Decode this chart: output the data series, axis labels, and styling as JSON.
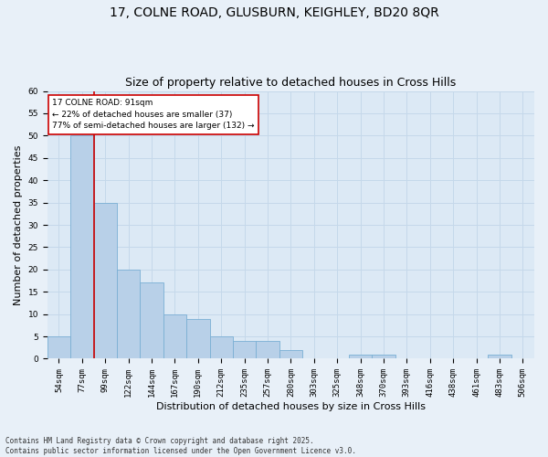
{
  "title_line1": "17, COLNE ROAD, GLUSBURN, KEIGHLEY, BD20 8QR",
  "title_line2": "Size of property relative to detached houses in Cross Hills",
  "xlabel": "Distribution of detached houses by size in Cross Hills",
  "ylabel": "Number of detached properties",
  "footnote": "Contains HM Land Registry data © Crown copyright and database right 2025.\nContains public sector information licensed under the Open Government Licence v3.0.",
  "categories": [
    "54sqm",
    "77sqm",
    "99sqm",
    "122sqm",
    "144sqm",
    "167sqm",
    "190sqm",
    "212sqm",
    "235sqm",
    "257sqm",
    "280sqm",
    "303sqm",
    "325sqm",
    "348sqm",
    "370sqm",
    "393sqm",
    "416sqm",
    "438sqm",
    "461sqm",
    "483sqm",
    "506sqm"
  ],
  "values": [
    5,
    50,
    35,
    20,
    17,
    10,
    9,
    5,
    4,
    4,
    2,
    0,
    0,
    1,
    1,
    0,
    0,
    0,
    0,
    1,
    0
  ],
  "bar_color": "#b8d0e8",
  "bar_edge_color": "#7aafd4",
  "grid_color": "#c5d8ea",
  "background_color": "#dce9f5",
  "fig_background_color": "#e8f0f8",
  "annotation_box_color": "#cc0000",
  "annotation_text": "17 COLNE ROAD: 91sqm\n← 22% of detached houses are smaller (37)\n77% of semi-detached houses are larger (132) →",
  "vline_x": 1.5,
  "ylim": [
    0,
    60
  ],
  "yticks": [
    0,
    5,
    10,
    15,
    20,
    25,
    30,
    35,
    40,
    45,
    50,
    55,
    60
  ],
  "title_fontsize": 10,
  "subtitle_fontsize": 9,
  "axis_label_fontsize": 8,
  "tick_fontsize": 6.5,
  "annotation_fontsize": 6.5,
  "footnote_fontsize": 5.5
}
